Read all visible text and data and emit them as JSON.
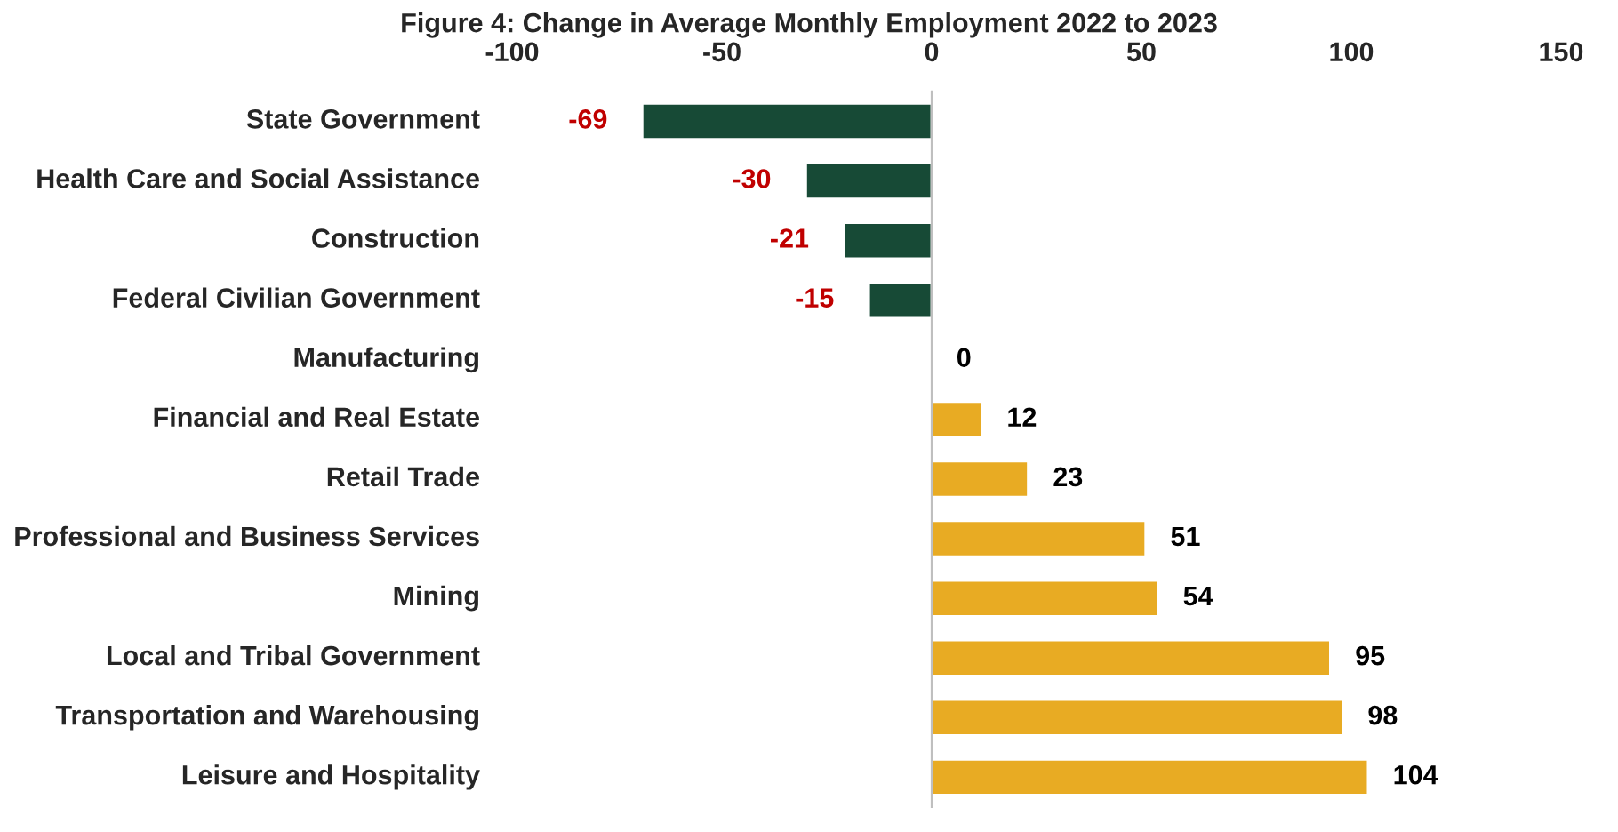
{
  "chart_data": {
    "type": "bar",
    "orientation": "horizontal",
    "title": "Figure 4: Change in Average Monthly Employment 2022 to 2023",
    "categories": [
      "State Government",
      "Health Care and Social Assistance",
      "Construction",
      "Federal Civilian Government",
      "Manufacturing",
      "Financial and Real Estate",
      "Retail Trade",
      "Professional and Business Services",
      "Mining",
      "Local and Tribal Government",
      "Transportation and Warehousing",
      "Leisure and Hospitality"
    ],
    "values": [
      -69,
      -30,
      -21,
      -15,
      0,
      12,
      23,
      51,
      54,
      95,
      98,
      104
    ],
    "colors": [
      "#174a36",
      "#174a36",
      "#174a36",
      "#174a36",
      null,
      "#e8ab23",
      "#e8ab23",
      "#e8ab23",
      "#e8ab23",
      "#e8ab23",
      "#e8ab23",
      "#e8ab23"
    ],
    "xlim": [
      -100,
      150
    ],
    "xticks": [
      -100,
      -50,
      0,
      50,
      100,
      150
    ],
    "data_labels": true,
    "legend": false
  }
}
